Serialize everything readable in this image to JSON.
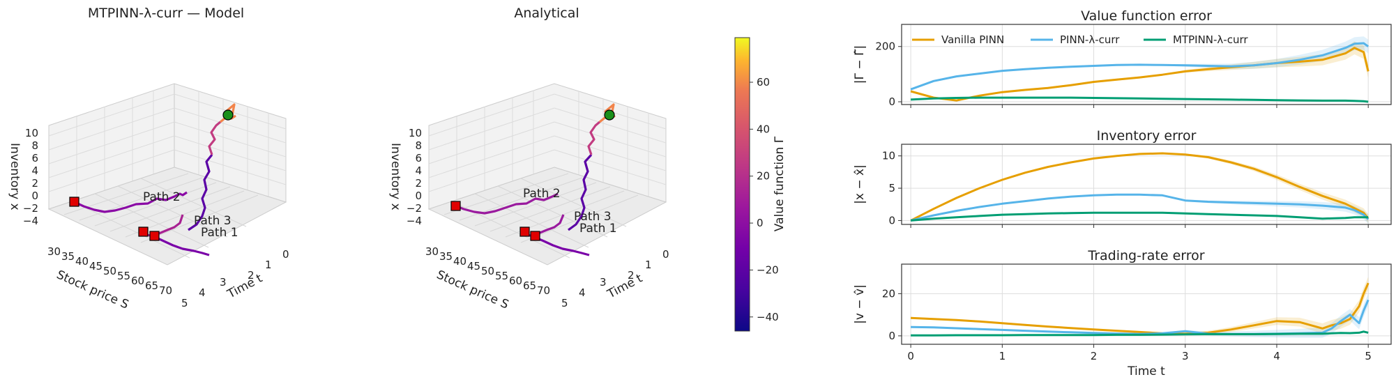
{
  "chart_data": {
    "type": "line",
    "colors": {
      "vanilla": "#E69F00",
      "lambda": "#56B4E9",
      "mtpinn": "#009E73",
      "start_marker": "#1a8f1a",
      "end_marker": "#e00000"
    },
    "surface_panels": [
      {
        "title": "MTPINN-λ-curr — Model",
        "xlabel": "Stock price S",
        "ylabel": "Time t",
        "zlabel": "Inventory x",
        "s_ticks": [
          "30",
          "35",
          "40",
          "45",
          "50",
          "55",
          "60",
          "65",
          "70"
        ],
        "t_ticks": [
          "0",
          "1",
          "2",
          "3",
          "4",
          "5"
        ],
        "x_ticks": [
          "10",
          "8",
          "6",
          "4",
          "2",
          "0",
          "−2",
          "−4"
        ],
        "path_labels": [
          "Path 2",
          "Path 3",
          "Path 1"
        ]
      },
      {
        "title": "Analytical",
        "xlabel": "Stock price S",
        "ylabel": "Time t",
        "zlabel": "Inventory x",
        "s_ticks": [
          "30",
          "35",
          "40",
          "45",
          "50",
          "55",
          "60",
          "65",
          "70"
        ],
        "t_ticks": [
          "0",
          "1",
          "2",
          "3",
          "4",
          "5"
        ],
        "x_ticks": [
          "10",
          "8",
          "6",
          "4",
          "2",
          "0",
          "−2",
          "−4"
        ],
        "path_labels": [
          "Path 2",
          "Path 3",
          "Path 1"
        ]
      }
    ],
    "colorbar": {
      "label": "Value function Γ",
      "ticks": [
        "60",
        "40",
        "20",
        "0",
        "−20",
        "−40"
      ],
      "range": [
        -46,
        79
      ]
    },
    "error_panels": [
      {
        "title": "Value function error",
        "ylabel": "|Γ − Γ̂|",
        "ylim": [
          -10,
          280
        ],
        "yticks": [
          "200",
          "0"
        ],
        "x": [
          0,
          0.25,
          0.5,
          0.75,
          1,
          1.25,
          1.5,
          1.75,
          2,
          2.25,
          2.5,
          2.75,
          3,
          3.25,
          3.5,
          3.75,
          4,
          4.25,
          4.5,
          4.75,
          4.85,
          4.95,
          5
        ],
        "series": [
          {
            "name": "Vanilla PINN",
            "values": [
              38,
              15,
              5,
              22,
              35,
              43,
              50,
              60,
              72,
              80,
              88,
              98,
              110,
              118,
              125,
              132,
              140,
              145,
              152,
              175,
              195,
              180,
              110
            ]
          },
          {
            "name": "PINN-λ-curr",
            "values": [
              45,
              75,
              92,
              102,
              112,
              118,
              123,
              127,
              130,
              133,
              134,
              133,
              132,
              130,
              128,
              132,
              140,
              152,
              168,
              195,
              210,
              212,
              200
            ]
          },
          {
            "name": "MTPINN-λ-curr",
            "values": [
              8,
              12,
              14,
              15,
              15,
              15,
              15,
              15,
              14,
              13,
              12,
              11,
              10,
              9,
              8,
              7,
              6,
              5,
              4,
              4,
              3,
              2,
              0
            ]
          }
        ]
      },
      {
        "title": "Inventory error",
        "ylabel": "|x − x̂|",
        "ylim": [
          -0.6,
          11.8
        ],
        "yticks": [
          "10",
          "5",
          "0"
        ],
        "x": [
          0,
          0.25,
          0.5,
          0.75,
          1,
          1.25,
          1.5,
          1.75,
          2,
          2.25,
          2.5,
          2.75,
          3,
          3.25,
          3.5,
          3.75,
          4,
          4.25,
          4.5,
          4.75,
          4.85,
          4.95,
          5
        ],
        "series": [
          {
            "name": "Vanilla PINN",
            "values": [
              0,
              1.8,
              3.5,
              5.0,
              6.3,
              7.4,
              8.3,
              9.0,
              9.6,
              10.0,
              10.3,
              10.4,
              10.2,
              9.8,
              9.0,
              8.0,
              6.7,
              5.2,
              3.8,
              2.6,
              1.9,
              1.2,
              0.3
            ]
          },
          {
            "name": "PINN-λ-curr",
            "values": [
              0,
              0.8,
              1.5,
              2.1,
              2.6,
              3.0,
              3.4,
              3.7,
              3.9,
              4.0,
              4.0,
              3.9,
              3.1,
              2.9,
              2.8,
              2.7,
              2.6,
              2.5,
              2.3,
              2.0,
              1.6,
              0.9,
              0.2
            ]
          },
          {
            "name": "MTPINN-λ-curr",
            "values": [
              0,
              0.3,
              0.5,
              0.7,
              0.9,
              1.0,
              1.1,
              1.15,
              1.2,
              1.2,
              1.2,
              1.2,
              1.1,
              1.0,
              0.9,
              0.8,
              0.7,
              0.5,
              0.3,
              0.4,
              0.5,
              0.5,
              0.5
            ]
          }
        ]
      },
      {
        "title": "Trading-rate error",
        "ylabel": "|v − v̂|",
        "ylim": [
          -4,
          34
        ],
        "yticks": [
          "20",
          "0"
        ],
        "x": [
          0,
          0.25,
          0.5,
          0.75,
          1,
          1.25,
          1.5,
          1.75,
          2,
          2.25,
          2.5,
          2.75,
          3,
          3.25,
          3.5,
          3.75,
          4,
          4.25,
          4.5,
          4.6,
          4.7,
          4.8,
          4.9,
          4.95,
          5
        ],
        "series": [
          {
            "name": "Vanilla PINN",
            "values": [
              8.5,
              8,
              7.5,
              6.8,
              6,
              5.2,
              4.4,
              3.7,
              3.0,
              2.4,
              1.8,
              1.2,
              1.0,
              1.5,
              3.0,
              5.0,
              7.0,
              6.5,
              3.5,
              5.0,
              6.0,
              8.0,
              14.0,
              20.0,
              25.0
            ]
          },
          {
            "name": "PINN-λ-curr",
            "values": [
              4.2,
              4.0,
              3.6,
              3.2,
              2.8,
              2.4,
              2.0,
              1.7,
              1.4,
              1.1,
              0.9,
              1.2,
              2.2,
              1.0,
              0.9,
              0.9,
              1.0,
              1.2,
              1.5,
              3.5,
              7.0,
              10.0,
              6.0,
              12.0,
              17.0
            ]
          },
          {
            "name": "MTPINN-λ-curr",
            "values": [
              0.2,
              0.2,
              0.3,
              0.3,
              0.3,
              0.4,
              0.4,
              0.4,
              0.4,
              0.5,
              0.5,
              0.6,
              0.7,
              0.8,
              0.8,
              0.8,
              0.9,
              1.0,
              1.0,
              1.2,
              1.4,
              1.3,
              1.5,
              2.0,
              1.5
            ]
          }
        ]
      }
    ],
    "error_xaxis": {
      "label": "Time t",
      "xlim": [
        -0.1,
        5.25
      ],
      "ticks": [
        "0",
        "1",
        "2",
        "3",
        "4",
        "5"
      ]
    },
    "legend": {
      "entries": [
        "Vanilla PINN",
        "PINN-λ-curr",
        "MTPINN-λ-curr"
      ],
      "placement": "top-left"
    }
  }
}
